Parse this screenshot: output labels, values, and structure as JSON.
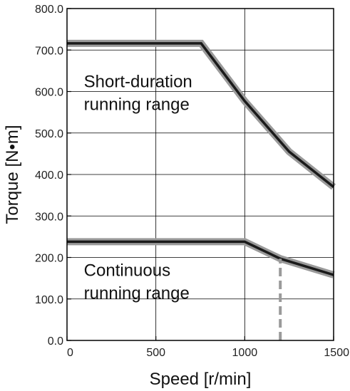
{
  "chart_data": {
    "type": "line",
    "xlabel": "Speed [r/min]",
    "ylabel": "Torque [N•m]",
    "xlim": [
      0,
      1500
    ],
    "ylim": [
      0,
      800
    ],
    "x_ticks": [
      0,
      500,
      1000,
      1500
    ],
    "x_tick_labels": [
      "0",
      "500",
      "1000",
      "1500"
    ],
    "y_ticks": [
      0,
      100,
      200,
      300,
      400,
      500,
      600,
      700,
      800
    ],
    "y_tick_labels": [
      "0.0",
      "100.0",
      "200.0",
      "300.0",
      "400.0",
      "500.0",
      "600.0",
      "700.0",
      "800.0"
    ],
    "grid": true,
    "series": [
      {
        "values": [
          [
            0,
            716
          ],
          [
            755,
            716
          ],
          [
            1000,
            577
          ],
          [
            1250,
            455
          ],
          [
            1500,
            370
          ]
        ]
      },
      {
        "values": [
          [
            0,
            238
          ],
          [
            1000,
            238
          ],
          [
            1200,
            197
          ],
          [
            1500,
            158
          ]
        ]
      }
    ],
    "dashed_marker": {
      "x": 1200,
      "y_from": 0,
      "y_to": 197
    },
    "annotations": [
      {
        "lines": [
          "Short-duration",
          "running range"
        ],
        "x": 95,
        "y": 610
      },
      {
        "lines": [
          "Continuous",
          "running range"
        ],
        "x": 95,
        "y": 155
      }
    ]
  }
}
